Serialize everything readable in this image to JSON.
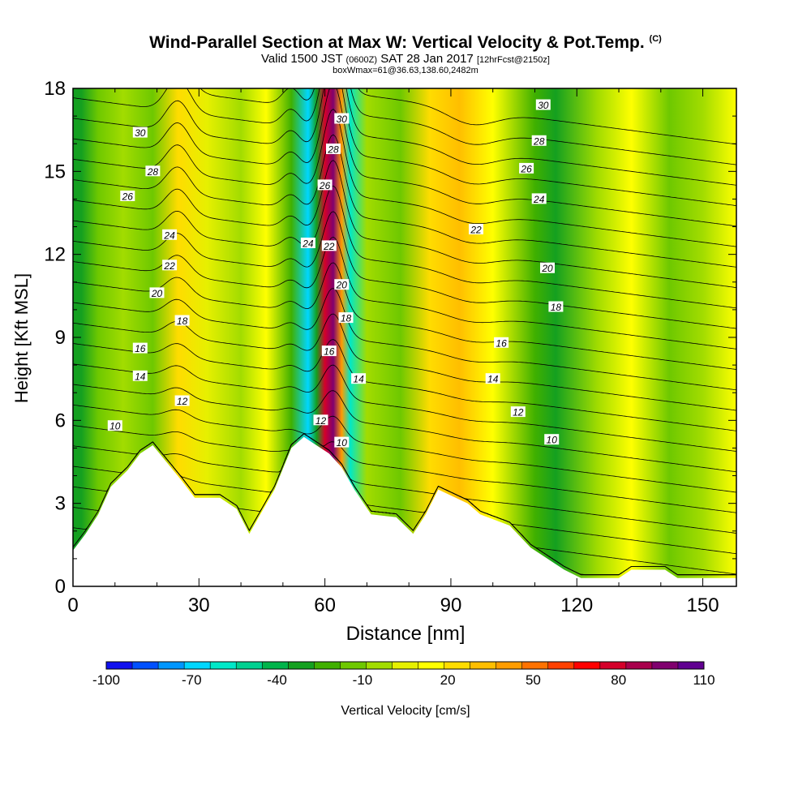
{
  "header": {
    "title": "Wind-Parallel Section at Max W: Vertical Velocity & Pot.Temp.",
    "copyright": "(C)",
    "valid_prefix": "Valid 1500 JST",
    "valid_utc": "(0600Z)",
    "valid_date": "SAT 28 Jan 2017",
    "forecast": "[12hrFcst@2150z]",
    "box_info": "boxWmax=61@36.63,138.60,2482m"
  },
  "colorbar": {
    "title": "Vertical Velocity [cm/s]",
    "tick_labels": [
      "-100",
      "-70",
      "-40",
      "-10",
      "20",
      "50",
      "80",
      "110"
    ],
    "colors": [
      "#1010ee",
      "#0050ff",
      "#0096ff",
      "#00d6ff",
      "#00e8c8",
      "#00d090",
      "#00b44a",
      "#14a020",
      "#40b000",
      "#6ec800",
      "#a2dc00",
      "#e6f000",
      "#ffff00",
      "#ffdc00",
      "#ffbe00",
      "#ff9c00",
      "#ff7200",
      "#ff4000",
      "#ff0000",
      "#d4002a",
      "#a8004c",
      "#80006e",
      "#600090"
    ]
  },
  "chart_data": {
    "type": "heatmap",
    "title": "Wind-Parallel Section at Max W: Vertical Velocity & Pot.Temp.",
    "xlabel": "Distance [nm]",
    "ylabel": "Height [Kft MSL]",
    "xlim": [
      0,
      158
    ],
    "ylim": [
      0,
      18
    ],
    "x_ticks": [
      0,
      30,
      60,
      90,
      120,
      150
    ],
    "y_ticks": [
      0,
      3,
      6,
      9,
      12,
      15,
      18
    ],
    "color_field": "vertical velocity (cm/s)",
    "color_range": [
      -100,
      110
    ],
    "velocity_columns": [
      {
        "x": 2,
        "w": -30
      },
      {
        "x": 6,
        "w": -10
      },
      {
        "x": 12,
        "w": -5
      },
      {
        "x": 19,
        "w": -15
      },
      {
        "x": 25,
        "w": 25
      },
      {
        "x": 32,
        "w": 5
      },
      {
        "x": 40,
        "w": 0
      },
      {
        "x": 46,
        "w": 15
      },
      {
        "x": 52,
        "w": -20
      },
      {
        "x": 56,
        "w": -65
      },
      {
        "x": 58,
        "w": -30
      },
      {
        "x": 60,
        "w": 80
      },
      {
        "x": 62,
        "w": 100
      },
      {
        "x": 64,
        "w": 40
      },
      {
        "x": 66,
        "w": -60
      },
      {
        "x": 70,
        "w": 0
      },
      {
        "x": 78,
        "w": -10
      },
      {
        "x": 85,
        "w": 20
      },
      {
        "x": 92,
        "w": 35
      },
      {
        "x": 100,
        "w": 15
      },
      {
        "x": 110,
        "w": -20
      },
      {
        "x": 115,
        "w": -30
      },
      {
        "x": 125,
        "w": -5
      },
      {
        "x": 133,
        "w": 15
      },
      {
        "x": 142,
        "w": -10
      },
      {
        "x": 150,
        "w": -5
      },
      {
        "x": 158,
        "w": 10
      }
    ],
    "contours": {
      "variable": "potential temperature",
      "levels_labeled": [
        10,
        12,
        14,
        16,
        18,
        20,
        22,
        24,
        26,
        28,
        30
      ],
      "labels": [
        {
          "text": "10",
          "x": 10,
          "y": 5.8
        },
        {
          "text": "12",
          "x": 26,
          "y": 6.7
        },
        {
          "text": "14",
          "x": 16,
          "y": 7.6
        },
        {
          "text": "16",
          "x": 16,
          "y": 8.6
        },
        {
          "text": "18",
          "x": 26,
          "y": 9.6
        },
        {
          "text": "20",
          "x": 20,
          "y": 10.6
        },
        {
          "text": "22",
          "x": 23,
          "y": 11.6
        },
        {
          "text": "24",
          "x": 23,
          "y": 12.7
        },
        {
          "text": "26",
          "x": 13,
          "y": 14.1
        },
        {
          "text": "28",
          "x": 19,
          "y": 15.0
        },
        {
          "text": "30",
          "x": 16,
          "y": 16.4
        },
        {
          "text": "30",
          "x": 64,
          "y": 16.9
        },
        {
          "text": "28",
          "x": 62,
          "y": 15.8
        },
        {
          "text": "26",
          "x": 60,
          "y": 14.5
        },
        {
          "text": "24",
          "x": 56,
          "y": 12.4
        },
        {
          "text": "22",
          "x": 61,
          "y": 12.3
        },
        {
          "text": "20",
          "x": 64,
          "y": 10.9
        },
        {
          "text": "18",
          "x": 65,
          "y": 9.7
        },
        {
          "text": "16",
          "x": 61,
          "y": 8.5
        },
        {
          "text": "14",
          "x": 68,
          "y": 7.5
        },
        {
          "text": "12",
          "x": 59,
          "y": 6.0
        },
        {
          "text": "10",
          "x": 64,
          "y": 5.2
        },
        {
          "text": "30",
          "x": 112,
          "y": 17.4
        },
        {
          "text": "28",
          "x": 111,
          "y": 16.1
        },
        {
          "text": "26",
          "x": 108,
          "y": 15.1
        },
        {
          "text": "24",
          "x": 111,
          "y": 14.0
        },
        {
          "text": "22",
          "x": 96,
          "y": 12.9
        },
        {
          "text": "20",
          "x": 113,
          "y": 11.5
        },
        {
          "text": "18",
          "x": 115,
          "y": 10.1
        },
        {
          "text": "16",
          "x": 102,
          "y": 8.8
        },
        {
          "text": "14",
          "x": 100,
          "y": 7.5
        },
        {
          "text": "12",
          "x": 106,
          "y": 6.3
        },
        {
          "text": "10",
          "x": 114,
          "y": 5.3
        }
      ]
    },
    "terrain_kft": [
      {
        "x": 0,
        "z": 1.3
      },
      {
        "x": 3,
        "z": 1.9
      },
      {
        "x": 6,
        "z": 2.6
      },
      {
        "x": 9,
        "z": 3.6
      },
      {
        "x": 13,
        "z": 4.2
      },
      {
        "x": 16,
        "z": 4.8
      },
      {
        "x": 19,
        "z": 5.1
      },
      {
        "x": 26,
        "z": 3.8
      },
      {
        "x": 29,
        "z": 3.2
      },
      {
        "x": 35,
        "z": 3.2
      },
      {
        "x": 39,
        "z": 2.8
      },
      {
        "x": 42,
        "z": 1.9
      },
      {
        "x": 48,
        "z": 3.5
      },
      {
        "x": 52,
        "z": 5.0
      },
      {
        "x": 55,
        "z": 5.4
      },
      {
        "x": 61,
        "z": 4.8
      },
      {
        "x": 64,
        "z": 4.3
      },
      {
        "x": 67,
        "z": 3.5
      },
      {
        "x": 71,
        "z": 2.6
      },
      {
        "x": 77,
        "z": 2.5
      },
      {
        "x": 81,
        "z": 1.9
      },
      {
        "x": 84,
        "z": 2.6
      },
      {
        "x": 87,
        "z": 3.5
      },
      {
        "x": 94,
        "z": 3.0
      },
      {
        "x": 97,
        "z": 2.6
      },
      {
        "x": 104,
        "z": 2.2
      },
      {
        "x": 109,
        "z": 1.4
      },
      {
        "x": 117,
        "z": 0.6
      },
      {
        "x": 121,
        "z": 0.3
      },
      {
        "x": 130,
        "z": 0.3
      },
      {
        "x": 133,
        "z": 0.6
      },
      {
        "x": 141,
        "z": 0.6
      },
      {
        "x": 144,
        "z": 0.3
      },
      {
        "x": 158,
        "z": 0.3
      }
    ]
  }
}
